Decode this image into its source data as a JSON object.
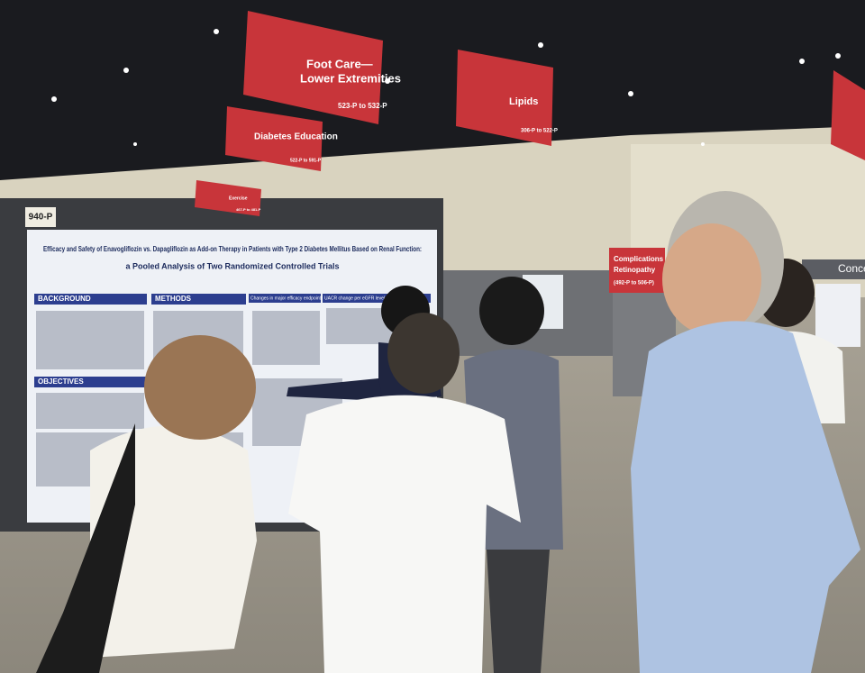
{
  "signs": [
    {
      "lines": [
        "Foot Care—",
        "Lower Extremities"
      ],
      "range": "523-P to 532-P"
    },
    {
      "lines": [
        "Diabetes Education"
      ],
      "range": "522-P to 591-P"
    },
    {
      "lines": [
        "Lipids"
      ],
      "range": "306-P to 522-P"
    },
    {
      "lines": [
        "Exercise"
      ],
      "range": "467-P to 481-P"
    },
    {
      "lines": [
        "Complications",
        "Retinopathy"
      ],
      "range": "(492-P to 506-P)"
    }
  ],
  "wall_sign": "Conce",
  "poster": {
    "number": "940-P",
    "title": [
      "Efficacy and Safety of Enavogliflozin vs. Dapagliflozin as Add-on Therapy in Patients with Type 2 Diabetes Mellitus Based on Renal Function:",
      "a Pooled Analysis of Two Randomized Controlled Trials"
    ],
    "sections": [
      "BACKGROUND",
      "METHODS",
      "OBJECTIVES"
    ],
    "figure_titles": [
      "Changes in major efficacy endpoints",
      "UACR change per eGFR level"
    ]
  }
}
